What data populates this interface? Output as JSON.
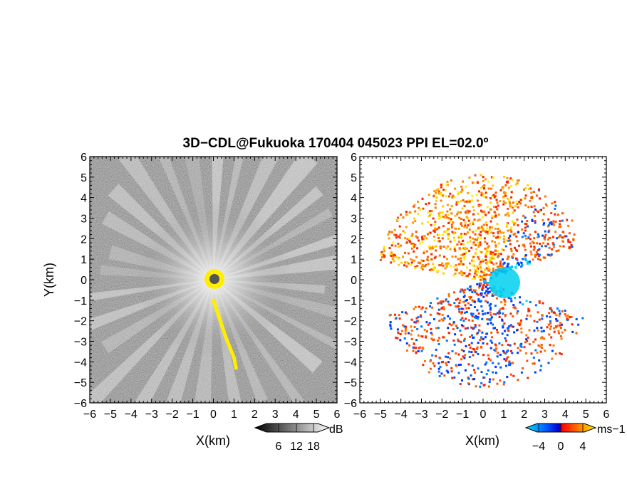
{
  "chart_data": {
    "title": "3D−CDL@Fukuoka 170404 045023 PPI EL=02.0º",
    "type": "heatmap",
    "panels": [
      {
        "name": "reflectivity",
        "xlabel": "X(km)",
        "ylabel": "Y(km)",
        "xlim": [
          -6,
          6
        ],
        "ylim": [
          -6,
          6
        ],
        "xticks": [
          "−6",
          "−5",
          "−4",
          "−3",
          "−2",
          "−1",
          "0",
          "1",
          "2",
          "3",
          "4",
          "5",
          "6"
        ],
        "yticks": [
          "6",
          "5",
          "4",
          "3",
          "2",
          "1",
          "0",
          "−1",
          "−2",
          "−3",
          "−4",
          "−5",
          "−6"
        ],
        "colorbar": {
          "unit": "dB",
          "tick_labels": [
            "6",
            "12",
            "18"
          ],
          "range": [
            0,
            24
          ],
          "colors": [
            "#000000",
            "#ffffff"
          ]
        },
        "highlight_color": "#ffee00",
        "feature_track_km": [
          [
            0.0,
            -1.0
          ],
          [
            0.2,
            -1.6
          ],
          [
            0.4,
            -2.2
          ],
          [
            0.6,
            -2.8
          ],
          [
            0.8,
            -3.3
          ],
          [
            1.0,
            -3.8
          ],
          [
            1.1,
            -4.3
          ]
        ]
      },
      {
        "name": "radial-velocity",
        "xlabel": "X(km)",
        "xlim": [
          -6,
          6
        ],
        "ylim": [
          -6,
          6
        ],
        "xticks": [
          "−6",
          "−5",
          "−4",
          "−3",
          "−2",
          "−1",
          "0",
          "1",
          "2",
          "3",
          "4",
          "5",
          "6"
        ],
        "yticks": [
          "6",
          "5",
          "4",
          "3",
          "2",
          "1",
          "0",
          "−1",
          "−2",
          "−3",
          "−4",
          "−5",
          "−6"
        ],
        "colorbar": {
          "unit": "ms−1",
          "tick_labels": [
            "−4",
            "0",
            "4"
          ],
          "range": [
            -6,
            6
          ],
          "colors": [
            "#00e0ff",
            "#0055ff",
            "#0000cc",
            "#ff0000",
            "#ff7700",
            "#ffee00"
          ]
        }
      }
    ]
  }
}
